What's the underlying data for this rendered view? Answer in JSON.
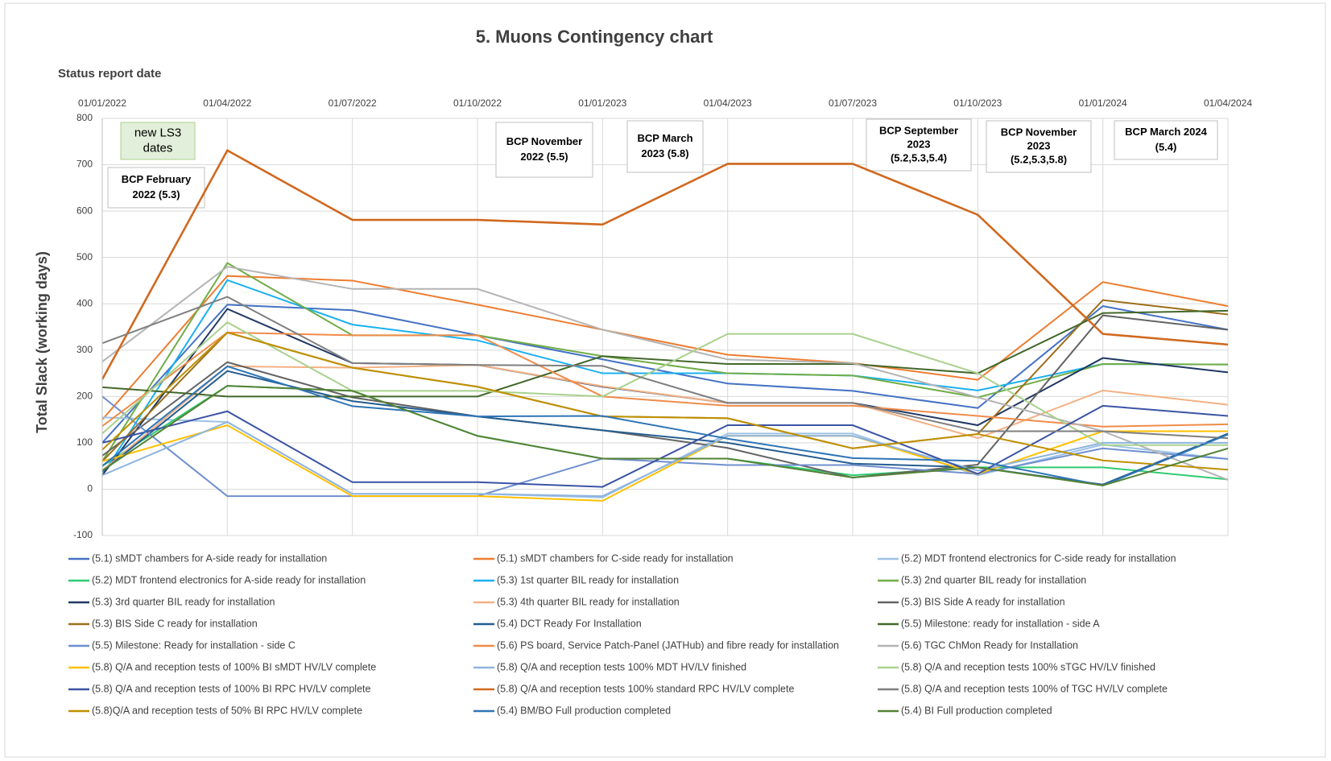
{
  "chart_data": {
    "type": "line",
    "title": "5. Muons Contingency chart",
    "x_label": "Status report date",
    "y_label": "Total Slack (working days)",
    "categories": [
      "01/01/2022",
      "01/04/2022",
      "01/07/2022",
      "01/10/2022",
      "01/01/2023",
      "01/04/2023",
      "01/07/2023",
      "01/10/2023",
      "01/01/2024",
      "01/04/2024"
    ],
    "ylim": [
      -100,
      800
    ],
    "yticks": [
      -100,
      0,
      100,
      200,
      300,
      400,
      500,
      600,
      700,
      800
    ],
    "grid": true,
    "legend": "bottom",
    "annotations": [
      {
        "lines": [
          "new LS3",
          "dates"
        ],
        "fill": "#e2efda"
      },
      {
        "lines": [
          "BCP February",
          "2022 (5.3)"
        ]
      },
      {
        "lines": [
          "BCP November",
          "2022 (5.5)"
        ]
      },
      {
        "lines": [
          "BCP March",
          "2023 (5.8)"
        ]
      },
      {
        "lines": [
          "BCP September",
          "2023",
          "(5.2,5.3,5.4)"
        ]
      },
      {
        "lines": [
          "BCP November",
          "2023",
          "(5.2,5.3,5.8)"
        ]
      },
      {
        "lines": [
          "BCP March 2024",
          "(5.4)"
        ]
      }
    ],
    "series": [
      {
        "name": "(5.1) sMDT chambers for A-side ready for installation",
        "color": "#4472c4",
        "values": [
          100,
          398,
          386,
          332,
          280,
          228,
          212,
          175,
          395,
          344
        ]
      },
      {
        "name": "(5.1) sMDT chambers for C-side ready for installation",
        "color": "#ed7d31",
        "values": [
          150,
          460,
          450,
          398,
          344,
          290,
          272,
          236,
          447,
          395
        ]
      },
      {
        "name": "(5.2) MDT frontend electronics for C-side ready for installation",
        "color": "#9dc3e6",
        "values": [
          155,
          145,
          -10,
          -10,
          -18,
          120,
          120,
          30,
          96,
          65
        ]
      },
      {
        "name": "(5.2) MDT frontend electronics for A-side ready for installation",
        "color": "#2ecc71",
        "values": [
          50,
          223,
          212,
          115,
          66,
          66,
          30,
          47,
          47,
          21
        ]
      },
      {
        "name": "(5.3) 1st quarter BIL ready for installation",
        "color": "#1ab0f0",
        "values": [
          30,
          451,
          355,
          321,
          250,
          250,
          245,
          213,
          270,
          269
        ]
      },
      {
        "name": "(5.3) 2nd quarter BIL ready for installation",
        "color": "#70ad47",
        "values": [
          60,
          488,
          332,
          332,
          287,
          250,
          245,
          198,
          270,
          269
        ]
      },
      {
        "name": "(5.3) 3rd quarter BIL ready for installation",
        "color": "#203864",
        "values": [
          30,
          389,
          272,
          268,
          221,
          186,
          186,
          138,
          283,
          252
        ]
      },
      {
        "name": "(5.3) 4th quarter BIL ready for installation",
        "color": "#f4b183",
        "values": [
          40,
          265,
          262,
          268,
          222,
          186,
          186,
          110,
          213,
          182
        ]
      },
      {
        "name": "(5.3) BIS Side A ready for installation",
        "color": "#636363",
        "values": [
          72,
          274,
          198,
          157,
          127,
          89,
          25,
          53,
          375,
          344
        ]
      },
      {
        "name": "(5.3) BIS Side C ready for installation",
        "color": "#9c6f19",
        "values": [
          60,
          338,
          262,
          221,
          157,
          153,
          88,
          119,
          408,
          377
        ]
      },
      {
        "name": "(5.4) DCT Ready For Installation",
        "color": "#255e91",
        "values": [
          38,
          255,
          190,
          157,
          127,
          100,
          55,
          47,
          10,
          120
        ]
      },
      {
        "name": "(5.5) Milestone: ready for installation - side A",
        "color": "#43682b",
        "values": [
          220,
          200,
          200,
          200,
          287,
          270,
          270,
          250,
          380,
          385
        ]
      },
      {
        "name": "(5.5) Milestone: Ready for installation - side C",
        "color": "#6f8fcf",
        "values": [
          200,
          -15,
          -15,
          -15,
          66,
          52,
          52,
          33,
          88,
          65
        ]
      },
      {
        "name": "(5.6) PS board, Service Patch-Panel (JATHub) and fibre ready for installation",
        "color": "#f08c4a",
        "values": [
          136,
          338,
          332,
          332,
          200,
          180,
          180,
          158,
          135,
          140
        ]
      },
      {
        "name": "(5.6) TGC ChMon Ready for Installation",
        "color": "#b4b4b4",
        "values": [
          275,
          480,
          432,
          432,
          344,
          280,
          272,
          198,
          125,
          20
        ]
      },
      {
        "name": "(5.8) Q/A and reception tests of 100% BI sMDT HV/LV complete",
        "color": "#ffc000",
        "values": [
          60,
          138,
          -15,
          -15,
          -25,
          115,
          115,
          33,
          125,
          125
        ]
      },
      {
        "name": "(5.8) Q/A and reception tests 100% MDT HV/LV finished",
        "color": "#8fb4de",
        "values": [
          30,
          145,
          -10,
          -10,
          -15,
          115,
          115,
          40,
          100,
          100
        ]
      },
      {
        "name": "(5.8) Q/A and reception tests 100% sTGC HV/LV finished",
        "color": "#a9d18e",
        "values": [
          120,
          360,
          212,
          212,
          200,
          335,
          335,
          250,
          95,
          95
        ]
      },
      {
        "name": "(5.8) Q/A and reception tests of 100% BI RPC HV/LV complete",
        "color": "#3a53a4",
        "values": [
          100,
          168,
          15,
          15,
          5,
          138,
          138,
          33,
          180,
          158
        ]
      },
      {
        "name": "(5.8) Q/A and reception tests 100% standard RPC HV/LV complete",
        "color": "#d0691f",
        "values": [
          237,
          731,
          581,
          581,
          571,
          702,
          702,
          592,
          335,
          312
        ]
      },
      {
        "name": "(5.8) Q/A and reception tests 100% of TGC HV/LV complete",
        "color": "#7f7f7f",
        "values": [
          315,
          415,
          272,
          268,
          266,
          186,
          186,
          125,
          125,
          110
        ]
      },
      {
        "name": "(5.8)Q/A and reception tests of 50% BI RPC HV/LV complete",
        "color": "#bf9000",
        "values": [
          85,
          338,
          262,
          221,
          157,
          153,
          88,
          119,
          62,
          42
        ]
      },
      {
        "name": "(5.4) BM/BO Full production completed",
        "color": "#2e75b6",
        "values": [
          50,
          265,
          179,
          157,
          158,
          109,
          67,
          61,
          8,
          118
        ]
      },
      {
        "name": "(5.4) BI Full production completed",
        "color": "#548235",
        "values": [
          40,
          223,
          212,
          115,
          66,
          66,
          25,
          47,
          8,
          88
        ]
      }
    ]
  }
}
